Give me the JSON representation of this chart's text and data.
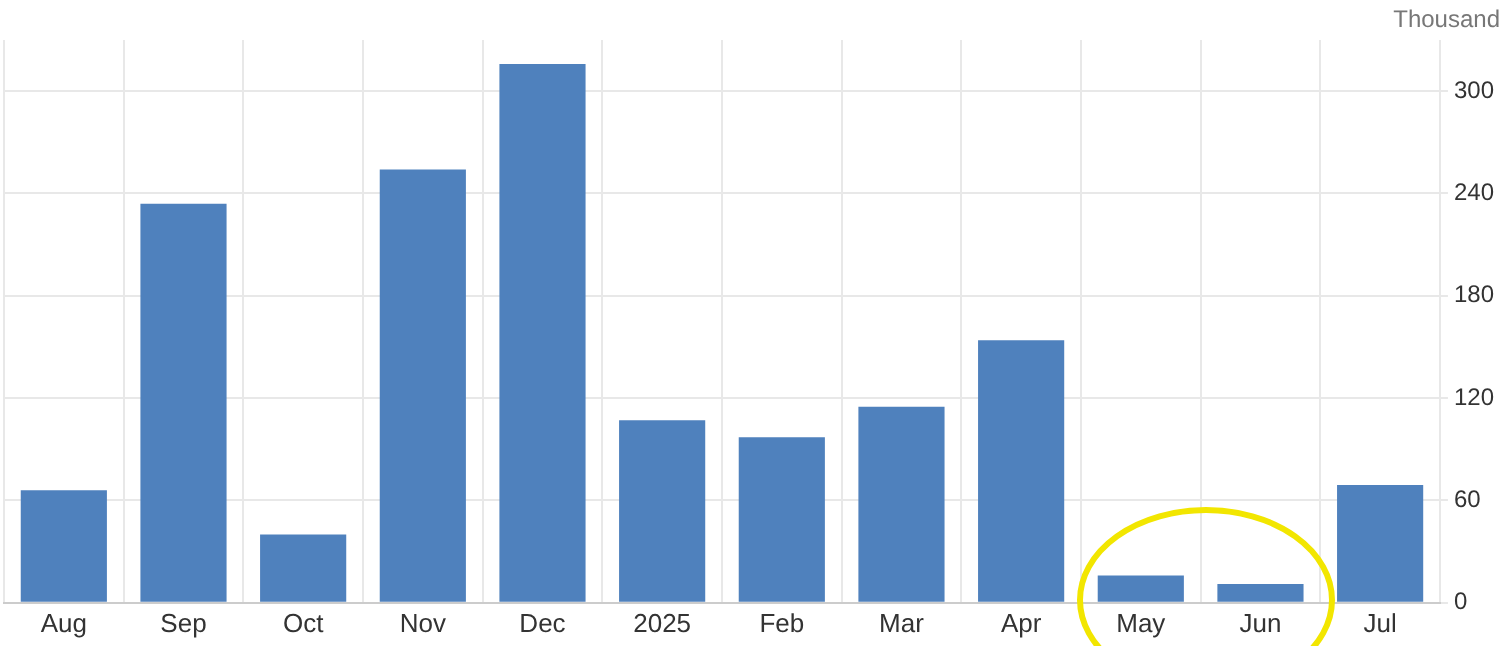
{
  "chart_data": {
    "type": "bar",
    "ylabel": "Thousand",
    "categories": [
      "Aug",
      "Sep",
      "Oct",
      "Nov",
      "Dec",
      "2025",
      "Feb",
      "Mar",
      "Apr",
      "May",
      "Jun",
      "Jul"
    ],
    "values": [
      66,
      234,
      40,
      254,
      316,
      107,
      97,
      115,
      154,
      16,
      11,
      69
    ],
    "color": "#4f81bd",
    "ylim": [
      0,
      330
    ],
    "yticks": [
      0,
      60,
      120,
      180,
      240,
      300
    ],
    "grid": true
  }
}
